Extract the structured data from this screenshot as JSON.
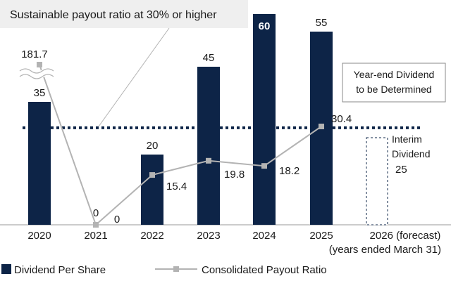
{
  "colors": {
    "bar": "#0d2447",
    "line": "#b3b3b3",
    "target_line": "#0d2447",
    "callout_bg": "#efefef"
  },
  "callout": {
    "text": "Sustainable payout ratio at 30% or higher"
  },
  "year_end_note": {
    "line1": "Year-end Dividend",
    "line2": "to be Determined"
  },
  "interim_note": {
    "line1": "Interim",
    "line2": "Dividend",
    "value": "25"
  },
  "axis_note": "(years ended March 31)",
  "legend": {
    "bar_label": "Dividend Per Share",
    "line_label": "Consolidated Payout Ratio"
  },
  "chart_data": {
    "type": "bar",
    "categories": [
      "2020",
      "2021",
      "2022",
      "2023",
      "2024",
      "2025",
      "2026 (forecast)"
    ],
    "series": [
      {
        "name": "Dividend Per Share",
        "type": "bar",
        "values": [
          35,
          0,
          20,
          45,
          60,
          55,
          null
        ],
        "labels": [
          "35",
          "0",
          "20",
          "45",
          "60",
          "55",
          ""
        ]
      },
      {
        "name": "Consolidated Payout Ratio",
        "type": "line",
        "values": [
          181.7,
          0,
          15.4,
          19.8,
          18.2,
          30.4,
          null
        ],
        "labels": [
          "181.7",
          "0",
          "15.4",
          "19.8",
          "18.2",
          "30.4",
          ""
        ]
      }
    ],
    "reference_line": {
      "value": 30
    },
    "axis_break_on_line": true
  }
}
